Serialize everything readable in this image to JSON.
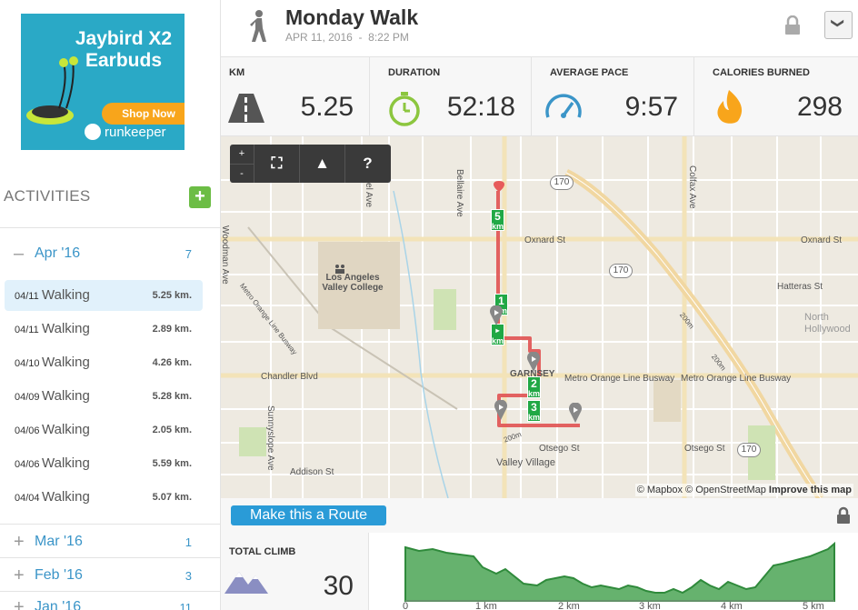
{
  "ad": {
    "title_line1": "Jaybird X2",
    "title_line2": "Earbuds",
    "cta": "Shop Now",
    "brand": "runkeeper"
  },
  "sidebar": {
    "heading": "ACTIVITIES",
    "add_label": "+",
    "months": [
      {
        "sign": "–",
        "name": "Apr '16",
        "count": "7"
      },
      {
        "sign": "+",
        "name": "Mar '16",
        "count": "1"
      },
      {
        "sign": "+",
        "name": "Feb '16",
        "count": "3"
      },
      {
        "sign": "+",
        "name": "Jan '16",
        "count": "11"
      }
    ],
    "activities": [
      {
        "date": "04/11",
        "type": "Walking",
        "dist": "5.25 km."
      },
      {
        "date": "04/11",
        "type": "Walking",
        "dist": "2.89 km."
      },
      {
        "date": "04/10",
        "type": "Walking",
        "dist": "4.26 km."
      },
      {
        "date": "04/09",
        "type": "Walking",
        "dist": "5.28 km."
      },
      {
        "date": "04/06",
        "type": "Walking",
        "dist": "2.05 km."
      },
      {
        "date": "04/06",
        "type": "Walking",
        "dist": "5.59 km."
      },
      {
        "date": "04/04",
        "type": "Walking",
        "dist": "5.07 km."
      }
    ]
  },
  "header": {
    "title": "Monday Walk",
    "date": "APR 11, 2016",
    "sep": "-",
    "time": "8:22 PM",
    "dropdown": "❯"
  },
  "stats": [
    {
      "label": "KM",
      "value": "5.25",
      "icon": "road-icon"
    },
    {
      "label": "DURATION",
      "value": "52:18",
      "icon": "stopwatch-icon"
    },
    {
      "label": "AVERAGE PACE",
      "value": "9:57",
      "icon": "speedometer-icon"
    },
    {
      "label": "CALORIES BURNED",
      "value": "298",
      "icon": "flame-icon"
    }
  ],
  "map": {
    "controls": {
      "zoom_in": "+",
      "zoom_out": "-",
      "fullscreen": "⛶",
      "terrain": "▲",
      "help": "?"
    },
    "labels": {
      "oxnard1": "Oxnard St",
      "oxnard2": "Oxnard St",
      "hatteras": "Hatteras St",
      "chandler": "Chandler Blvd",
      "orange1": "Metro Orange Line Busway",
      "orange2": "Metro Orange Line Busway",
      "orange_diag": "Metro Orange Line Busway",
      "lavc": "Los Angeles Valley College",
      "garnsey": "GARNSEY",
      "otsego1": "Otsego St",
      "otsego2": "Otsego St",
      "addison": "Addison St",
      "valley": "Valley Village",
      "north": "North",
      "hollywood": "Hollywood",
      "woodman": "Woodman Ave",
      "bellaire": "Bellaire Ave",
      "ethel": "Ethel Ave",
      "colfax": "Colfax Ave",
      "sunnyslope": "Sunnyslope Ave",
      "hwy170a": "170",
      "hwy170b": "170",
      "hwy170c": "170",
      "c200a": "200m",
      "c200b": "200m",
      "c200c": "200m"
    },
    "km_markers": [
      "1",
      "2",
      "3",
      "5"
    ],
    "km_unit": "km",
    "attribution": "© Mapbox © OpenStreetMap",
    "improve": "Improve this map"
  },
  "route_button": "Make this a Route",
  "climb": {
    "label": "TOTAL CLIMB",
    "value": "30"
  },
  "elevation": {
    "x_ticks": [
      "0",
      "1 km",
      "2 km",
      "3 km",
      "4 km",
      "5 km"
    ]
  }
}
